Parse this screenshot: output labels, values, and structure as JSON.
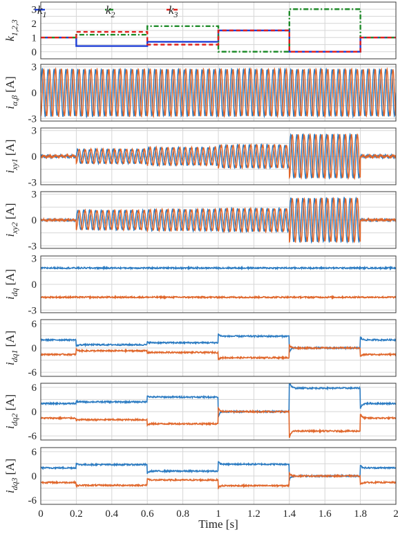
{
  "chart_data": [
    {
      "id": "k",
      "type": "line",
      "ylabel": "k_{1,2,3}",
      "ylabel_main": "k",
      "ylabel_sub": "1,2,3",
      "ylim": [
        -0.5,
        3.5
      ],
      "yticks": [
        0,
        1,
        2,
        3
      ],
      "ytick_labels": [
        "0",
        "1",
        "2",
        "3"
      ],
      "x": [
        0,
        0.2,
        0.6,
        1.0,
        1.4,
        1.8,
        2.0
      ],
      "legend": {
        "placement": "top-left",
        "entries": [
          "k1",
          "k2",
          "k3"
        ]
      },
      "series": [
        {
          "name": "k1",
          "main": "k",
          "sub": "1",
          "color": "#1f3fd6",
          "dash": "none",
          "segments": [
            [
              0,
              0.2,
              1.0
            ],
            [
              0.2,
              0.6,
              0.4
            ],
            [
              0.6,
              1.0,
              0.7
            ],
            [
              1.0,
              1.4,
              1.5
            ],
            [
              1.4,
              1.8,
              0.0
            ],
            [
              1.8,
              2.0,
              1.0
            ]
          ]
        },
        {
          "name": "k2",
          "main": "k",
          "sub": "2",
          "color": "#1f8c2a",
          "dash": "7,3,2,3",
          "segments": [
            [
              0,
              0.2,
              1.0
            ],
            [
              0.2,
              0.6,
              1.2
            ],
            [
              0.6,
              1.0,
              1.8
            ],
            [
              1.0,
              1.4,
              0.0
            ],
            [
              1.4,
              1.8,
              3.0
            ],
            [
              1.8,
              2.0,
              1.0
            ]
          ]
        },
        {
          "name": "k3",
          "main": "k",
          "sub": "3",
          "color": "#e0201b",
          "dash": "6,4",
          "segments": [
            [
              0,
              0.2,
              1.0
            ],
            [
              0.2,
              0.6,
              1.4
            ],
            [
              0.6,
              1.0,
              0.5
            ],
            [
              1.0,
              1.4,
              1.5
            ],
            [
              1.4,
              1.8,
              0.0
            ],
            [
              1.8,
              2.0,
              1.0
            ]
          ]
        }
      ]
    },
    {
      "id": "iab",
      "type": "line",
      "ylabel": "i_{α,β} [A]",
      "ylabel_main": "i",
      "ylabel_sub": "α,β",
      "ylabel_unit": "[A]",
      "ylim": [
        -3.3,
        3.3
      ],
      "yticks": [
        -3,
        0,
        3
      ],
      "ytick_labels": [
        "-3",
        "0",
        "3"
      ],
      "x": [
        0,
        0.2,
        0.6,
        1.0,
        1.4,
        1.8,
        2.0
      ],
      "series": [
        {
          "name": "i_alpha",
          "color": "#2b7bc2",
          "amplitude": [
            2.7,
            2.7,
            2.7,
            2.7,
            2.7,
            2.7
          ],
          "offset": [
            0,
            0,
            0,
            0,
            0,
            0
          ],
          "phase": 0
        },
        {
          "name": "i_beta",
          "color": "#e0662a",
          "amplitude": [
            2.7,
            2.7,
            2.7,
            2.7,
            2.7,
            2.7
          ],
          "offset": [
            0,
            0,
            0,
            0,
            0,
            0
          ],
          "phase": -1.5708
        }
      ]
    },
    {
      "id": "ixy1",
      "type": "line",
      "ylabel": "i_{xy1} [A]",
      "ylabel_main": "i",
      "ylabel_sub": "xy1",
      "ylabel_unit": "[A]",
      "ylim": [
        -3.3,
        3.3
      ],
      "yticks": [
        -3,
        0,
        3
      ],
      "ytick_labels": [
        "-3",
        "0",
        "3"
      ],
      "x": [
        0,
        0.2,
        0.6,
        1.0,
        1.4,
        1.8,
        2.0
      ],
      "series": [
        {
          "name": "i_x1",
          "color": "#2b7bc2",
          "amplitude": [
            0.1,
            0.8,
            1.0,
            1.3,
            2.5,
            0.1
          ],
          "offset": [
            0,
            0,
            0,
            0,
            0,
            0
          ],
          "phase": 0
        },
        {
          "name": "i_y1",
          "color": "#e0662a",
          "amplitude": [
            0.1,
            0.8,
            1.0,
            1.3,
            2.5,
            0.1
          ],
          "offset": [
            0,
            0,
            0,
            0,
            0,
            0
          ],
          "phase": -1.5708
        }
      ]
    },
    {
      "id": "ixy2",
      "type": "line",
      "ylabel": "i_{xy2} [A]",
      "ylabel_main": "i",
      "ylabel_sub": "xy2",
      "ylabel_unit": "[A]",
      "ylim": [
        -3.3,
        3.3
      ],
      "yticks": [
        -3,
        0,
        3
      ],
      "ytick_labels": [
        "-3",
        "0",
        "3"
      ],
      "x": [
        0,
        0.2,
        0.6,
        1.0,
        1.4,
        1.8,
        2.0
      ],
      "series": [
        {
          "name": "i_x2",
          "color": "#2b7bc2",
          "amplitude": [
            0.05,
            1.1,
            1.2,
            1.3,
            2.5,
            0.05
          ],
          "offset": [
            0,
            0,
            0,
            0,
            0,
            0
          ],
          "phase": 0
        },
        {
          "name": "i_y2",
          "color": "#e0662a",
          "amplitude": [
            0.05,
            1.1,
            1.2,
            1.3,
            2.5,
            0.05
          ],
          "offset": [
            0,
            0,
            0,
            0,
            0,
            0
          ],
          "phase": -1.5708
        }
      ]
    },
    {
      "id": "idq",
      "type": "line",
      "ylabel": "i_{dq} [A]",
      "ylabel_main": "i",
      "ylabel_sub": "dq",
      "ylabel_unit": "[A]",
      "ylim": [
        -3.3,
        3.3
      ],
      "yticks": [
        -3,
        0,
        3
      ],
      "ytick_labels": [
        "-3",
        "0",
        "3"
      ],
      "x": [
        0,
        0.2,
        0.6,
        1.0,
        1.4,
        1.8,
        2.0
      ],
      "series": [
        {
          "name": "i_d",
          "color": "#2b7bc2",
          "levels": [
            1.9,
            1.9,
            1.9,
            1.9,
            1.9,
            1.9
          ]
        },
        {
          "name": "i_q",
          "color": "#e0662a",
          "levels": [
            -1.5,
            -1.5,
            -1.5,
            -1.5,
            -1.5,
            -1.5
          ]
        }
      ]
    },
    {
      "id": "idq1",
      "type": "line",
      "ylabel": "i_{dq1} [A]",
      "ylabel_main": "i",
      "ylabel_sub": "dq1",
      "ylabel_unit": "[A]",
      "ylim": [
        -7,
        7
      ],
      "yticks": [
        -6,
        0,
        6
      ],
      "ytick_labels": [
        "-6",
        "0",
        "6"
      ],
      "x": [
        0,
        0.2,
        0.6,
        1.0,
        1.4,
        1.8,
        2.0
      ],
      "series": [
        {
          "name": "i_d1",
          "color": "#2b7bc2",
          "levels": [
            2.0,
            0.8,
            1.3,
            2.9,
            0.0,
            2.0
          ]
        },
        {
          "name": "i_q1",
          "color": "#e0662a",
          "levels": [
            -1.6,
            -0.7,
            -1.1,
            -2.4,
            0.0,
            -1.6
          ]
        }
      ]
    },
    {
      "id": "idq2",
      "type": "line",
      "ylabel": "i_{dq2} [A]",
      "ylabel_main": "i",
      "ylabel_sub": "dq2",
      "ylabel_unit": "[A]",
      "ylim": [
        -7,
        7
      ],
      "yticks": [
        -6,
        0,
        6
      ],
      "ytick_labels": [
        "-6",
        "0",
        "6"
      ],
      "x": [
        0,
        0.2,
        0.6,
        1.0,
        1.4,
        1.8,
        2.0
      ],
      "series": [
        {
          "name": "i_d2",
          "color": "#2b7bc2",
          "levels": [
            2.0,
            2.4,
            3.6,
            0.0,
            5.8,
            2.0
          ]
        },
        {
          "name": "i_q2",
          "color": "#e0662a",
          "levels": [
            -1.6,
            -2.0,
            -3.0,
            0.0,
            -4.8,
            -1.6
          ]
        }
      ]
    },
    {
      "id": "idq3",
      "type": "line",
      "ylabel": "i_{dq3} [A]",
      "ylabel_main": "i",
      "ylabel_sub": "dq3",
      "ylabel_unit": "[A]",
      "ylim": [
        -7,
        7
      ],
      "yticks": [
        -6,
        0,
        6
      ],
      "ytick_labels": [
        "-6",
        "0",
        "6"
      ],
      "xlabel": "Time [s]",
      "xlim": [
        0,
        2
      ],
      "xticks": [
        0,
        0.2,
        0.4,
        0.6,
        0.8,
        1.0,
        1.2,
        1.4,
        1.6,
        1.8,
        2.0
      ],
      "xtick_labels": [
        "0",
        "0.2",
        "0.4",
        "0.6",
        "0.8",
        "1",
        "1.2",
        "1.4",
        "1.6",
        "1.8",
        "2"
      ],
      "x": [
        0,
        0.2,
        0.6,
        1.0,
        1.4,
        1.8,
        2.0
      ],
      "series": [
        {
          "name": "i_d3",
          "color": "#2b7bc2",
          "levels": [
            2.0,
            2.8,
            1.2,
            2.9,
            0.0,
            2.0
          ]
        },
        {
          "name": "i_q3",
          "color": "#e0662a",
          "levels": [
            -1.6,
            -2.3,
            -1.0,
            -2.4,
            0.0,
            -1.6
          ]
        }
      ]
    }
  ]
}
